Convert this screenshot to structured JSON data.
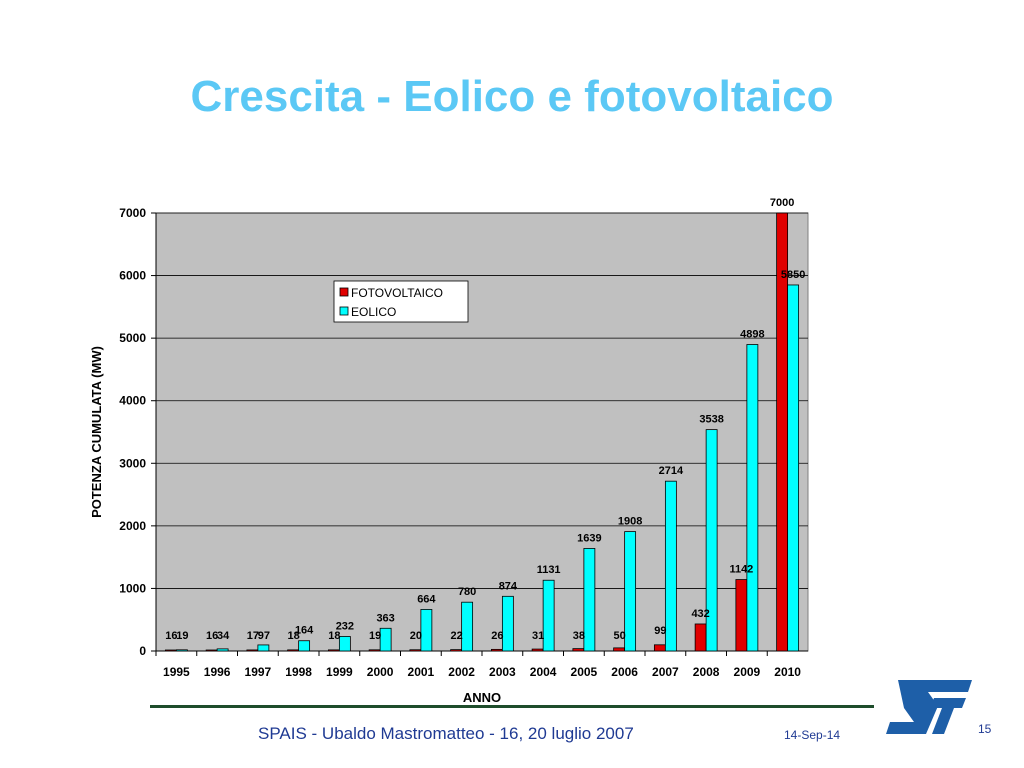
{
  "slide": {
    "title": "Crescita - Eolico e fotovoltaico",
    "footer_text": "SPAIS - Ubaldo Mastromatteo - 16, 20 luglio 2007",
    "footer_date": "14-Sep-14",
    "page_number": "15",
    "title_color": "#5BC8F5",
    "footer_color": "#1F3A93",
    "logo_icon": "st-logo-icon",
    "logo_color": "#1E5FA8"
  },
  "chart_data": {
    "type": "bar",
    "title": "",
    "xlabel": "ANNO",
    "ylabel": "POTENZA CUMULATA (MW)",
    "categories": [
      "1995",
      "1996",
      "1997",
      "1998",
      "1999",
      "2000",
      "2001",
      "2002",
      "2003",
      "2004",
      "2005",
      "2006",
      "2007",
      "2008",
      "2009",
      "2010"
    ],
    "ylim": [
      0,
      7000
    ],
    "yticks": [
      0,
      1000,
      2000,
      3000,
      4000,
      5000,
      6000,
      7000
    ],
    "grid": true,
    "legend_position": "top-center",
    "plot_background": "#C0C0C0",
    "series": [
      {
        "name": "FOTOVOLTAICO",
        "color": "#E00000",
        "values": [
          16,
          16,
          17,
          18,
          18,
          19,
          20,
          22,
          26,
          31,
          38,
          50,
          99,
          432,
          1142,
          7000
        ]
      },
      {
        "name": "EOLICO",
        "color": "#00FFFF",
        "values": [
          19,
          34,
          97,
          164,
          232,
          363,
          664,
          780,
          874,
          1131,
          1639,
          1908,
          2714,
          3538,
          4898,
          5850
        ]
      }
    ]
  }
}
